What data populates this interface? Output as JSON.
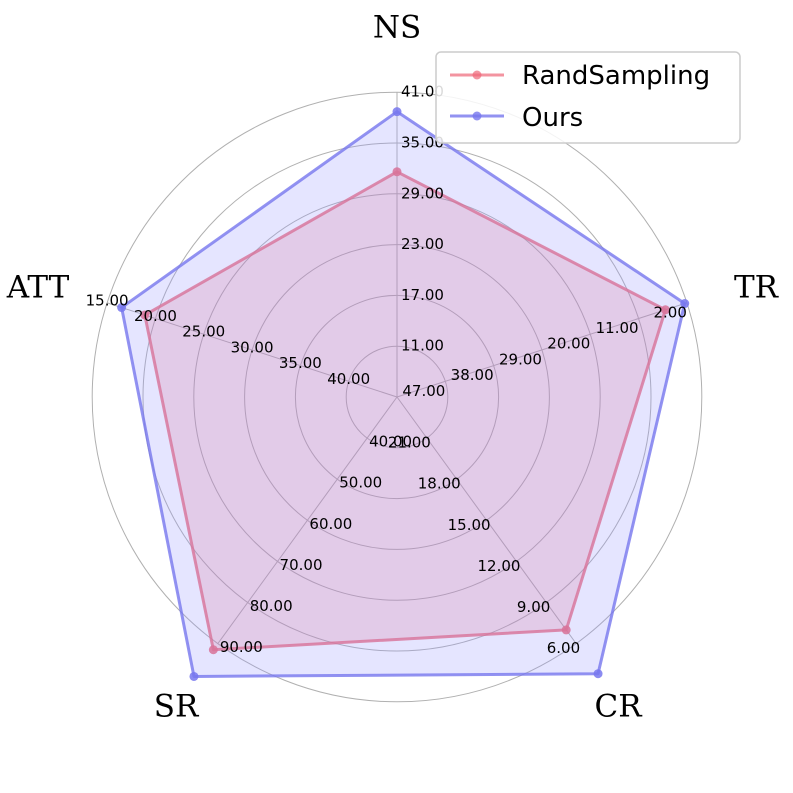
{
  "chart_data": {
    "type": "radar",
    "axes": [
      {
        "name": "NS",
        "ticks": [
          "41.00",
          "35.00",
          "29.00",
          "23.00",
          "17.00",
          "11.00"
        ]
      },
      {
        "name": "TR",
        "ticks": [
          "2.00",
          "11.00",
          "20.00",
          "29.00",
          "38.00",
          "47.00"
        ]
      },
      {
        "name": "CR",
        "ticks": [
          "6.00",
          "9.00",
          "12.00",
          "15.00",
          "18.00",
          "21.00"
        ]
      },
      {
        "name": "SR",
        "ticks": [
          "90.00",
          "80.00",
          "70.00",
          "60.00",
          "50.00",
          "40.00"
        ]
      },
      {
        "name": "ATT",
        "ticks": [
          "15.00",
          "20.00",
          "25.00",
          "30.00",
          "35.00",
          "40.00"
        ]
      }
    ],
    "series": [
      {
        "name": "RandSampling",
        "color": "#ee6677",
        "fill": "#ee6677",
        "values": {
          "NS": 31.6,
          "TR": 6.0,
          "CR": 7.0,
          "SR": 91.5,
          "ATT": 18.9
        }
      },
      {
        "name": "Ours",
        "color": "#7777ee",
        "fill": "#9999ff",
        "values": {
          "NS": 38.7,
          "TR": 2.4,
          "CR": 3.8,
          "SR": 98.0,
          "ATT": 16.5
        }
      }
    ],
    "legend": "top-right",
    "grid": true
  }
}
